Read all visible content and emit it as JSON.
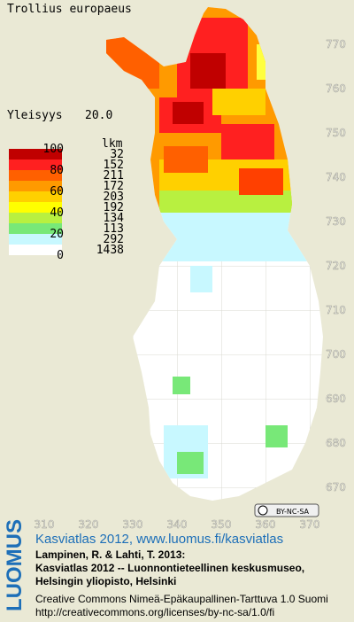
{
  "header": {
    "species": "Trollius europaeus",
    "frequency_label": "Yleisyys",
    "frequency_value": "20.0"
  },
  "legend": {
    "scale": [
      100,
      80,
      60,
      40,
      20,
      0
    ],
    "count_header": "lkm",
    "counts": [
      32,
      152,
      211,
      172,
      203,
      192,
      134,
      113,
      292,
      1438
    ]
  },
  "axes": {
    "y_labels": [
      770,
      760,
      750,
      740,
      730,
      720,
      710,
      700,
      690,
      680,
      670
    ],
    "x_labels": [
      310,
      320,
      330,
      340,
      350,
      360,
      370
    ]
  },
  "license_badge": "BY-NC-SA",
  "footer": {
    "logo": "LUOMUS",
    "atlas": "Kasviatlas 2012, www.luomus.fi/kasviatlas",
    "citation": [
      "Lampinen, R. & Lahti, T. 2013:",
      "Kasviatlas 2012 -- Luonnontieteellinen keskusmuseo,",
      "Helsingin yliopisto, Helsinki"
    ],
    "license": [
      "Creative Commons Nimeä-Epäkaupallinen-Tarttuva 1.0 Suomi",
      "http://creativecommons.org/licenses/by-nc-sa/1.0/fi"
    ]
  }
}
